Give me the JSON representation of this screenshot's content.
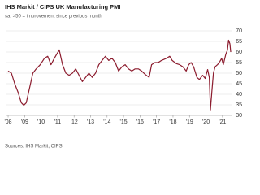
{
  "chart_data": {
    "type": "line",
    "title": "IHS Markit / CIPS UK Manufacturing PMI",
    "subtitle": "sa, >50 = improvement since previous month",
    "source": "Sources: IHS Markit, CIPS.",
    "x": [
      2008.0,
      2008.2,
      2008.4,
      2008.6,
      2008.8,
      2008.95,
      2009.1,
      2009.3,
      2009.5,
      2009.7,
      2009.95,
      2010.2,
      2010.4,
      2010.6,
      2010.8,
      2010.95,
      2011.1,
      2011.3,
      2011.5,
      2011.7,
      2011.9,
      2012.1,
      2012.3,
      2012.5,
      2012.7,
      2012.9,
      2013.1,
      2013.3,
      2013.5,
      2013.7,
      2013.9,
      2014.1,
      2014.3,
      2014.5,
      2014.7,
      2014.9,
      2015.1,
      2015.3,
      2015.5,
      2015.7,
      2015.9,
      2016.1,
      2016.3,
      2016.55,
      2016.7,
      2016.9,
      2017.1,
      2017.3,
      2017.6,
      2017.8,
      2017.95,
      2018.2,
      2018.4,
      2018.6,
      2018.8,
      2018.95,
      2019.1,
      2019.25,
      2019.45,
      2019.6,
      2019.8,
      2019.95,
      2020.1,
      2020.2,
      2020.27,
      2020.35,
      2020.45,
      2020.55,
      2020.7,
      2020.85,
      2020.95,
      2021.05,
      2021.2,
      2021.3,
      2021.37,
      2021.45,
      2021.5
    ],
    "series": [
      {
        "name": "UK Manufacturing PMI",
        "color": "#8c1c2e",
        "values": [
          51,
          50,
          45,
          41,
          36,
          34.8,
          36,
          43,
          50,
          52,
          54,
          57,
          58,
          54,
          57,
          59,
          61,
          54,
          50,
          49,
          50,
          52,
          49,
          46,
          48,
          50,
          48,
          50,
          54,
          56,
          58,
          56,
          57,
          55,
          51,
          53,
          54,
          52,
          51,
          52,
          52,
          51,
          49.5,
          48,
          54,
          55,
          55,
          56,
          57,
          58,
          56,
          54.5,
          54,
          53,
          51,
          54,
          55,
          53,
          48,
          47,
          49,
          47.5,
          51.7,
          48,
          32.6,
          40.7,
          50,
          53,
          54,
          55.6,
          57,
          54,
          58.9,
          60.9,
          65.6,
          63.9,
          60
        ]
      }
    ],
    "xlim": [
      2007.9,
      2021.55
    ],
    "xticks": [
      {
        "value": 2008,
        "label": "'08"
      },
      {
        "value": 2009,
        "label": "'09"
      },
      {
        "value": 2010,
        "label": "'10"
      },
      {
        "value": 2011,
        "label": "'11"
      },
      {
        "value": 2012,
        "label": "'12"
      },
      {
        "value": 2013,
        "label": "'13"
      },
      {
        "value": 2014,
        "label": "'14"
      },
      {
        "value": 2015,
        "label": "'15"
      },
      {
        "value": 2016,
        "label": "'16"
      },
      {
        "value": 2017,
        "label": "'17"
      },
      {
        "value": 2018,
        "label": "'18"
      },
      {
        "value": 2019,
        "label": "'19"
      },
      {
        "value": 2020,
        "label": "'20"
      },
      {
        "value": 2021,
        "label": "'21"
      }
    ],
    "ylim": [
      30,
      70
    ],
    "yticks": [
      30,
      35,
      40,
      45,
      50,
      55,
      60,
      65,
      70
    ],
    "grid": true
  }
}
